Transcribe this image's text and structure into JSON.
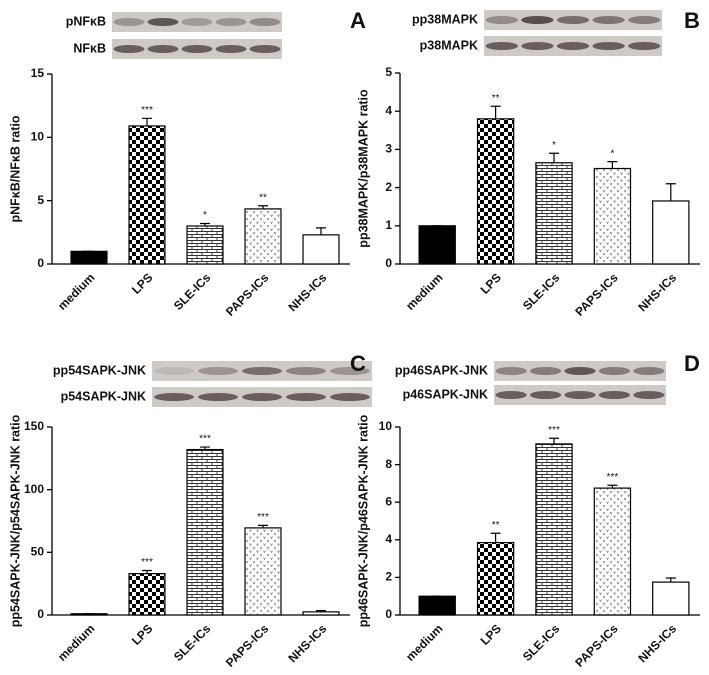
{
  "chart_data": [
    {
      "type": "bar",
      "panel": "A",
      "blot_labels": [
        "pNFκB",
        "NFκB"
      ],
      "ylabel": "pNFκB/NFκB ratio",
      "categories": [
        "medium",
        "LPS",
        "SLE-ICs",
        "PAPS-ICs",
        "NHS-ICs"
      ],
      "values": [
        1,
        10.9,
        3.0,
        4.35,
        2.3
      ],
      "errors": [
        0,
        0.6,
        0.2,
        0.25,
        0.55
      ],
      "significance": [
        null,
        "***",
        "*",
        "**",
        null
      ],
      "patterns": [
        "solid",
        "checker",
        "brick",
        "dots",
        "white"
      ],
      "ylim": [
        0,
        15
      ],
      "yticks": [
        0,
        5,
        10,
        15
      ]
    },
    {
      "type": "bar",
      "panel": "B",
      "blot_labels": [
        "pp38MAPK",
        "p38MAPK"
      ],
      "ylabel": "pp38MAPK/p38MAPK ratio",
      "categories": [
        "medium",
        "LPS",
        "SLE-ICs",
        "PAPS-ICs",
        "NHS-ICs"
      ],
      "values": [
        1,
        3.8,
        2.65,
        2.5,
        1.65
      ],
      "errors": [
        0,
        0.33,
        0.25,
        0.18,
        0.45
      ],
      "significance": [
        null,
        "**",
        "*",
        "*",
        null
      ],
      "patterns": [
        "solid",
        "checker",
        "brick",
        "dots",
        "white"
      ],
      "ylim": [
        0,
        5
      ],
      "yticks": [
        0,
        1,
        2,
        3,
        4,
        5
      ]
    },
    {
      "type": "bar",
      "panel": "C",
      "blot_labels": [
        "pp54SAPK-JNK",
        "p54SAPK-JNK"
      ],
      "ylabel": "pp54SAPK-JNK/p54SAPK-JNK ratio",
      "categories": [
        "medium",
        "LPS",
        "SLE-ICs",
        "PAPS-ICs",
        "NHS-ICs"
      ],
      "values": [
        1,
        33,
        132,
        69.5,
        2.5
      ],
      "errors": [
        0,
        2.5,
        2,
        2,
        1
      ],
      "significance": [
        null,
        "***",
        "***",
        "***",
        null
      ],
      "patterns": [
        "solid",
        "checker",
        "brick",
        "dots",
        "white"
      ],
      "ylim": [
        0,
        150
      ],
      "yticks": [
        0,
        50,
        100,
        150
      ]
    },
    {
      "type": "bar",
      "panel": "D",
      "blot_labels": [
        "pp46SAPK-JNK",
        "p46SAPK-JNK"
      ],
      "ylabel": "pp46SAPK-JNK/p46SAPK-JNK ratio",
      "categories": [
        "medium",
        "LPS",
        "SLE-ICs",
        "PAPS-ICs",
        "NHS-ICs"
      ],
      "values": [
        1,
        3.85,
        9.1,
        6.75,
        1.75
      ],
      "errors": [
        0,
        0.5,
        0.3,
        0.15,
        0.22
      ],
      "significance": [
        null,
        "**",
        "***",
        "***",
        null
      ],
      "patterns": [
        "solid",
        "checker",
        "brick",
        "dots",
        "white"
      ],
      "ylim": [
        0,
        10
      ],
      "yticks": [
        0,
        2,
        4,
        6,
        8,
        10
      ]
    }
  ]
}
